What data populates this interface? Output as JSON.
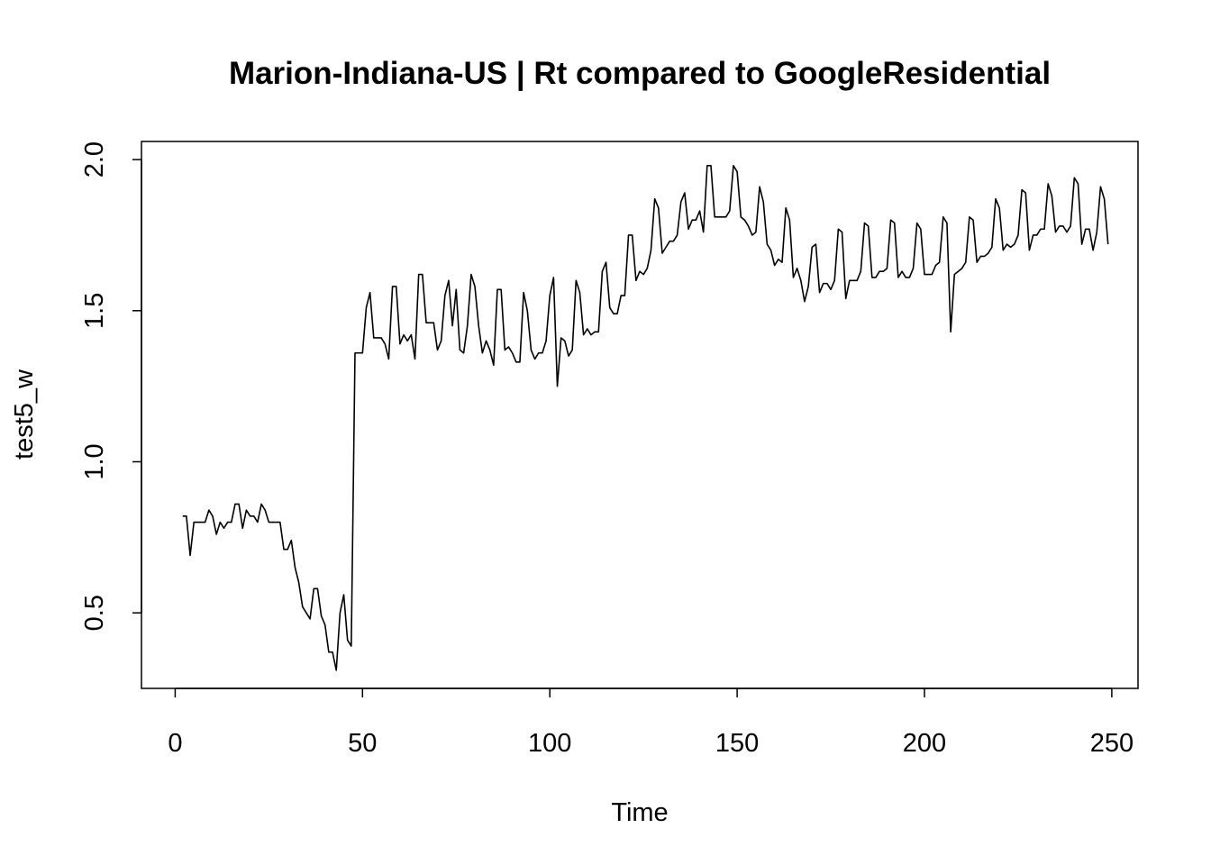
{
  "chart_data": {
    "type": "line",
    "title": "Marion-Indiana-US | Rt compared to GoogleResidential",
    "xlabel": "Time",
    "ylabel": "test5_w",
    "xlim": [
      -9,
      257
    ],
    "ylim": [
      0.25,
      2.06
    ],
    "xticks": [
      0,
      50,
      100,
      150,
      200,
      250
    ],
    "yticks": [
      0.5,
      1.0,
      1.5,
      2.0
    ],
    "xtick_labels": [
      "0",
      "50",
      "100",
      "150",
      "200",
      "250"
    ],
    "ytick_labels": [
      "0.5",
      "1.0",
      "1.5",
      "2.0"
    ],
    "grid": false,
    "line_color": "#000000",
    "series": [
      {
        "x_start": 2,
        "x_step": 1,
        "values": [
          0.82,
          0.82,
          0.69,
          0.8,
          0.8,
          0.8,
          0.8,
          0.84,
          0.82,
          0.76,
          0.8,
          0.78,
          0.8,
          0.8,
          0.86,
          0.86,
          0.78,
          0.84,
          0.82,
          0.82,
          0.8,
          0.86,
          0.84,
          0.8,
          0.8,
          0.8,
          0.8,
          0.71,
          0.71,
          0.74,
          0.65,
          0.6,
          0.52,
          0.5,
          0.48,
          0.58,
          0.58,
          0.49,
          0.46,
          0.37,
          0.37,
          0.31,
          0.5,
          0.56,
          0.41,
          0.39,
          1.36,
          1.36,
          1.36,
          1.51,
          1.56,
          1.41,
          1.41,
          1.41,
          1.39,
          1.34,
          1.58,
          1.58,
          1.39,
          1.42,
          1.4,
          1.42,
          1.34,
          1.62,
          1.62,
          1.46,
          1.46,
          1.46,
          1.37,
          1.4,
          1.55,
          1.6,
          1.45,
          1.57,
          1.37,
          1.36,
          1.45,
          1.62,
          1.58,
          1.45,
          1.36,
          1.4,
          1.37,
          1.32,
          1.57,
          1.57,
          1.37,
          1.38,
          1.36,
          1.33,
          1.33,
          1.56,
          1.5,
          1.37,
          1.34,
          1.36,
          1.36,
          1.4,
          1.55,
          1.61,
          1.25,
          1.41,
          1.4,
          1.35,
          1.37,
          1.6,
          1.56,
          1.42,
          1.44,
          1.42,
          1.43,
          1.43,
          1.63,
          1.66,
          1.51,
          1.49,
          1.49,
          1.55,
          1.55,
          1.75,
          1.75,
          1.6,
          1.63,
          1.62,
          1.64,
          1.7,
          1.87,
          1.84,
          1.69,
          1.71,
          1.73,
          1.73,
          1.75,
          1.86,
          1.89,
          1.77,
          1.8,
          1.8,
          1.83,
          1.76,
          1.98,
          1.98,
          1.81,
          1.81,
          1.81,
          1.81,
          1.83,
          1.98,
          1.96,
          1.81,
          1.8,
          1.78,
          1.75,
          1.76,
          1.91,
          1.86,
          1.72,
          1.7,
          1.65,
          1.67,
          1.66,
          1.84,
          1.8,
          1.61,
          1.64,
          1.6,
          1.53,
          1.58,
          1.71,
          1.72,
          1.56,
          1.59,
          1.59,
          1.57,
          1.6,
          1.77,
          1.76,
          1.54,
          1.6,
          1.6,
          1.6,
          1.63,
          1.79,
          1.78,
          1.61,
          1.61,
          1.63,
          1.63,
          1.64,
          1.8,
          1.79,
          1.61,
          1.63,
          1.61,
          1.61,
          1.64,
          1.79,
          1.77,
          1.62,
          1.62,
          1.62,
          1.65,
          1.66,
          1.81,
          1.79,
          1.43,
          1.62,
          1.63,
          1.64,
          1.66,
          1.81,
          1.8,
          1.66,
          1.68,
          1.68,
          1.69,
          1.71,
          1.87,
          1.84,
          1.7,
          1.72,
          1.71,
          1.72,
          1.75,
          1.9,
          1.89,
          1.7,
          1.75,
          1.75,
          1.77,
          1.77,
          1.92,
          1.88,
          1.76,
          1.78,
          1.78,
          1.76,
          1.78,
          1.94,
          1.92,
          1.72,
          1.77,
          1.77,
          1.7,
          1.76,
          1.91,
          1.87,
          1.72
        ]
      }
    ]
  }
}
